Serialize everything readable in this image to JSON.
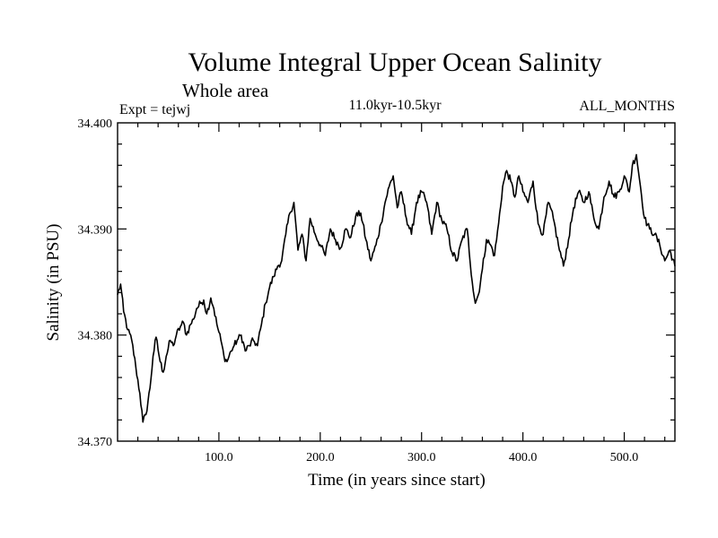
{
  "chart_data": {
    "type": "line",
    "title": "Volume Integral Upper Ocean Salinity",
    "subtitle": "Whole area",
    "header_left": "Expt = tejwj",
    "header_center": "11.0kyr-10.5kyr",
    "header_right": "ALL_MONTHS",
    "xlabel": "Time (in years since start)",
    "ylabel": "Salinity (in PSU)",
    "xlim": [
      0,
      550
    ],
    "ylim": [
      34.37,
      34.4
    ],
    "x_ticks": [
      100,
      200,
      300,
      400,
      500
    ],
    "x_tick_labels": [
      "100.0",
      "200.0",
      "300.0",
      "400.0",
      "500.0"
    ],
    "y_ticks": [
      34.37,
      34.38,
      34.39,
      34.4
    ],
    "y_tick_labels": [
      "34.370",
      "34.380",
      "34.390",
      "34.400"
    ],
    "line_color": "#000000",
    "series": [
      {
        "name": "Salinity",
        "x": [
          0,
          3,
          6,
          10,
          14,
          18,
          22,
          25,
          28,
          32,
          35,
          38,
          42,
          45,
          48,
          52,
          55,
          58,
          62,
          65,
          68,
          72,
          75,
          78,
          82,
          85,
          88,
          92,
          95,
          98,
          102,
          105,
          108,
          112,
          115,
          118,
          122,
          126,
          130,
          134,
          138,
          142,
          146,
          150,
          154,
          158,
          162,
          166,
          170,
          174,
          178,
          182,
          186,
          190,
          195,
          200,
          205,
          210,
          215,
          220,
          225,
          230,
          235,
          240,
          245,
          250,
          255,
          260,
          264,
          268,
          272,
          276,
          280,
          285,
          290,
          295,
          300,
          305,
          310,
          315,
          320,
          325,
          330,
          335,
          340,
          345,
          350,
          353,
          356,
          360,
          364,
          368,
          372,
          376,
          380,
          384,
          388,
          392,
          396,
          400,
          405,
          410,
          415,
          420,
          425,
          430,
          435,
          440,
          445,
          450,
          455,
          460,
          465,
          470,
          475,
          480,
          485,
          490,
          495,
          500,
          505,
          508,
          512,
          516,
          520,
          525,
          530,
          535,
          540,
          545,
          550
        ],
        "values": [
          34.3838,
          34.3848,
          34.3822,
          34.3805,
          34.3795,
          34.377,
          34.3745,
          34.3718,
          34.3725,
          34.375,
          34.378,
          34.3798,
          34.3775,
          34.3765,
          34.378,
          34.3795,
          34.379,
          34.38,
          34.3808,
          34.3812,
          34.38,
          34.381,
          34.3815,
          34.3825,
          34.383,
          34.3833,
          34.382,
          34.3835,
          34.3825,
          34.381,
          34.3795,
          34.378,
          34.3775,
          34.3785,
          34.379,
          34.3795,
          34.38,
          34.3785,
          34.379,
          34.3795,
          34.379,
          34.381,
          34.383,
          34.3845,
          34.3855,
          34.3865,
          34.387,
          34.3895,
          34.3915,
          34.3925,
          34.388,
          34.3895,
          34.387,
          34.391,
          34.3895,
          34.3885,
          34.3875,
          34.39,
          34.389,
          34.3882,
          34.39,
          34.3892,
          34.3912,
          34.3915,
          34.389,
          34.387,
          34.3885,
          34.3905,
          34.3925,
          34.394,
          34.395,
          34.392,
          34.3935,
          34.391,
          34.3895,
          34.3925,
          34.3935,
          34.3925,
          34.3895,
          34.3925,
          34.3908,
          34.39,
          34.3878,
          34.387,
          34.389,
          34.39,
          34.385,
          34.383,
          34.3838,
          34.3862,
          34.389,
          34.3885,
          34.3875,
          34.3905,
          34.394,
          34.3955,
          34.3945,
          34.393,
          34.395,
          34.3935,
          34.3925,
          34.3945,
          34.3905,
          34.3895,
          34.3925,
          34.391,
          34.3885,
          34.3865,
          34.389,
          34.392,
          34.3935,
          34.3925,
          34.3935,
          34.391,
          34.39,
          34.393,
          34.3945,
          34.393,
          34.3935,
          34.395,
          34.3935,
          34.396,
          34.397,
          34.394,
          34.391,
          34.39,
          34.3895,
          34.3885,
          34.387,
          34.388,
          34.3865
        ]
      }
    ]
  }
}
